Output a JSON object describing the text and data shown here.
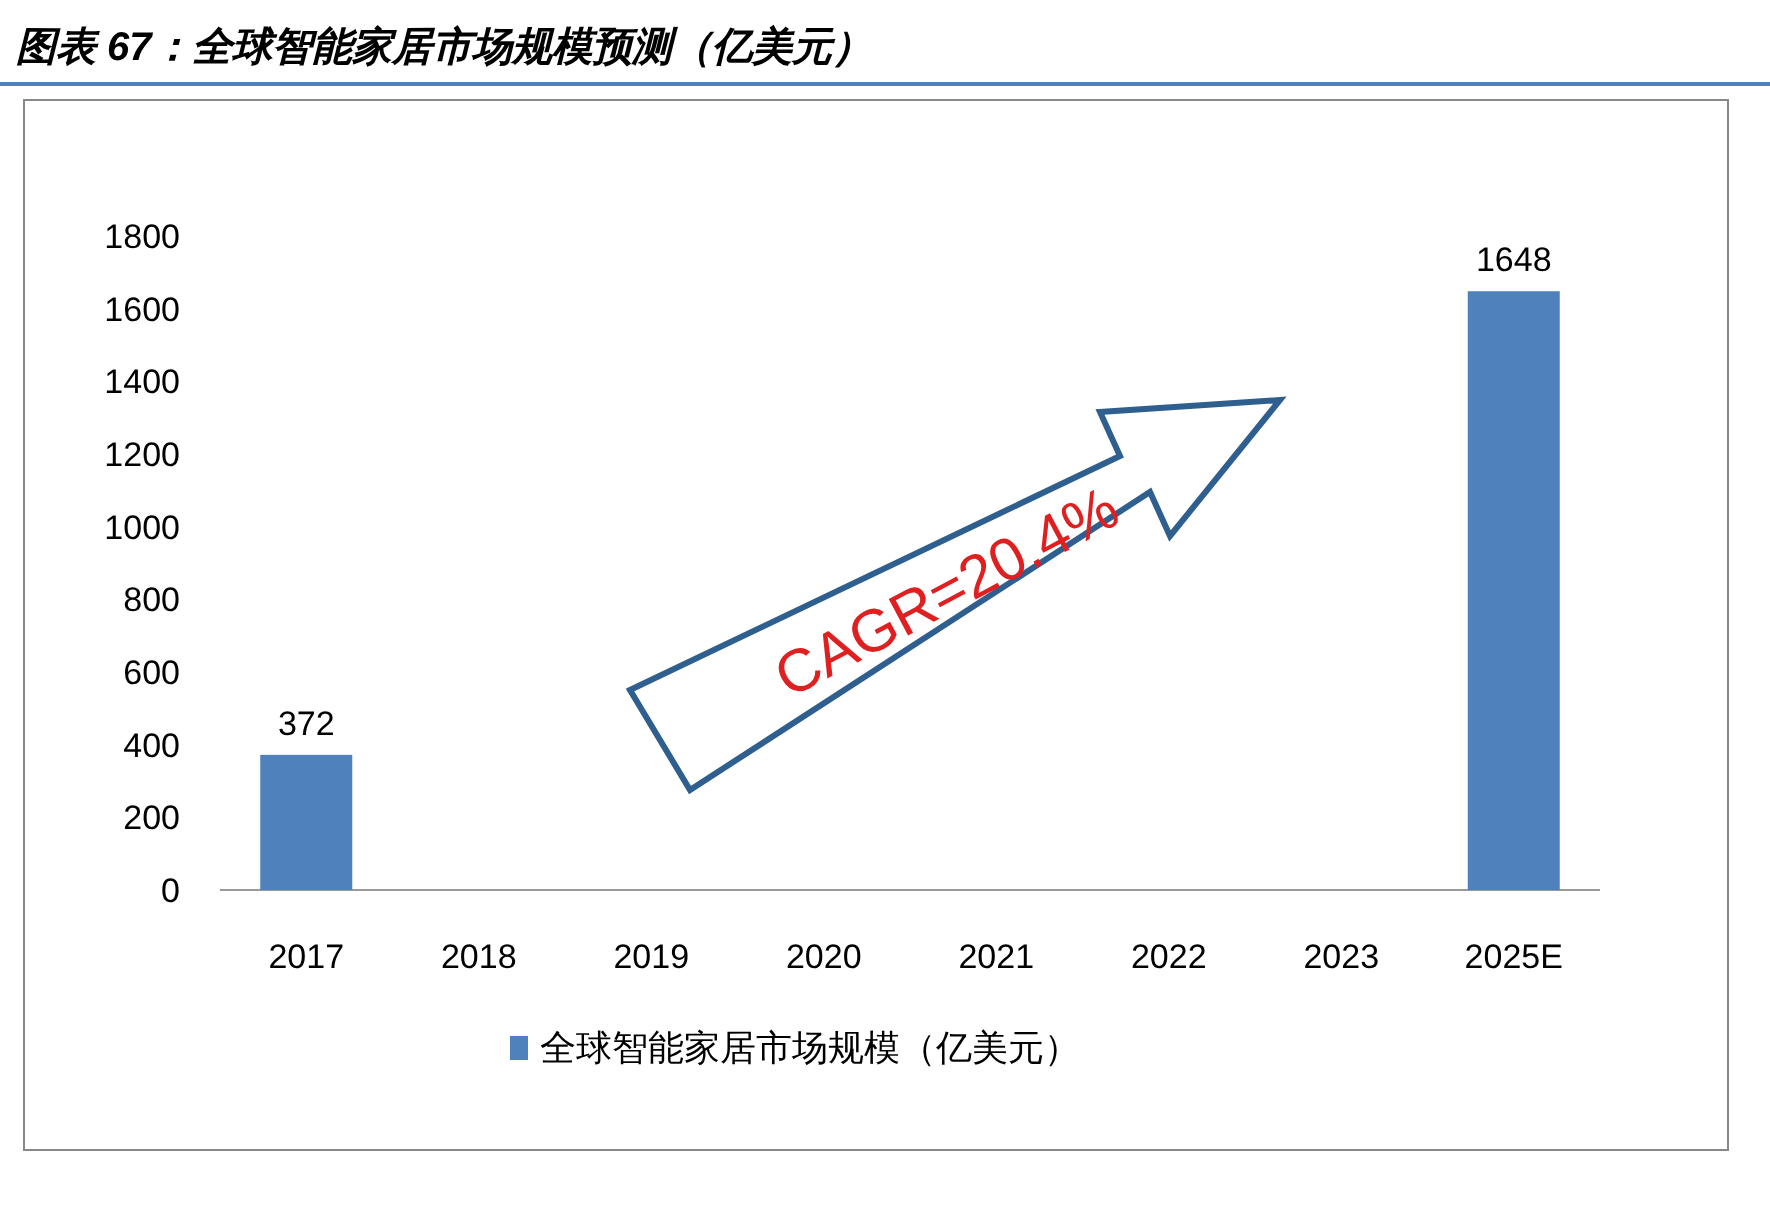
{
  "chart_data": {
    "type": "bar",
    "title": "图表 67：全球智能家居市场规模预测（亿美元）",
    "categories": [
      "2017",
      "2018",
      "2019",
      "2020",
      "2021",
      "2022",
      "2023",
      "2025E"
    ],
    "series": [
      {
        "name": "全球智能家居市场规模（亿美元）",
        "color": "#4f81bd",
        "values": [
          372,
          null,
          null,
          null,
          null,
          null,
          null,
          1648
        ]
      }
    ],
    "ylim": [
      0,
      1800
    ],
    "yticks": [
      0,
      200,
      400,
      600,
      800,
      1000,
      1200,
      1400,
      1600,
      1800
    ],
    "data_labels": true,
    "legend": "bottom",
    "annotations": [
      "CAGR=20.4%"
    ]
  }
}
